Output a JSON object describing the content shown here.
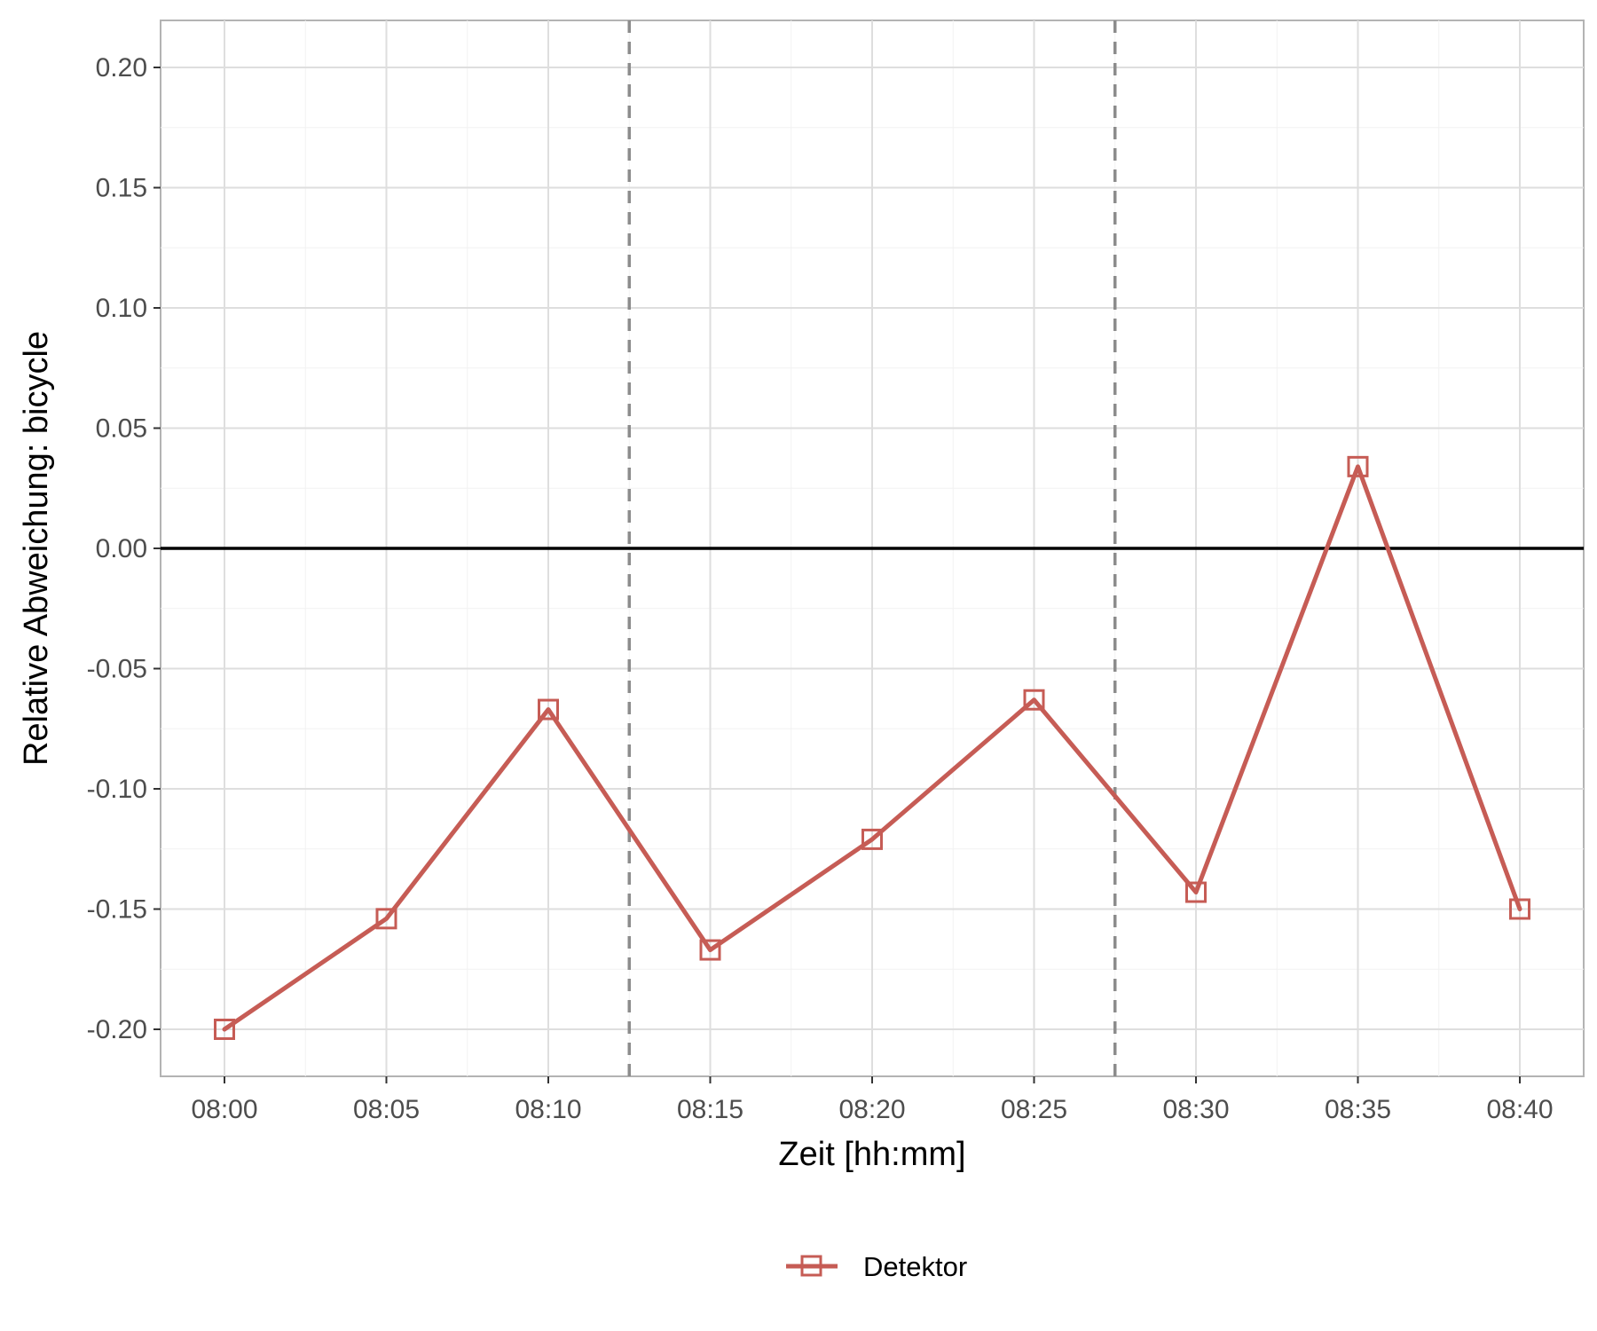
{
  "chart_data": {
    "type": "line",
    "xlabel": "Zeit [hh:mm]",
    "ylabel": "Relative Abweichung: bicycle",
    "x_tick_labels": [
      "08:00",
      "08:05",
      "08:10",
      "08:15",
      "08:20",
      "08:25",
      "08:30",
      "08:35",
      "08:40"
    ],
    "y_tick_labels": [
      "0.20",
      "0.15",
      "0.10",
      "0.05",
      "0.00",
      "-0.05",
      "-0.10",
      "-0.15",
      "-0.20"
    ],
    "y_ticks": [
      0.2,
      0.15,
      0.1,
      0.05,
      0.0,
      -0.05,
      -0.1,
      -0.15,
      -0.2
    ],
    "ylim": [
      -0.22,
      0.22
    ],
    "reference_line_y": 0.0,
    "vertical_dashed_lines_x": [
      "08:12:30",
      "08:27:30"
    ],
    "series": [
      {
        "name": "Detektor",
        "color": "#c65c55",
        "marker": "open-square",
        "x": [
          "08:00",
          "08:05",
          "08:10",
          "08:15",
          "08:20",
          "08:25",
          "08:30",
          "08:35",
          "08:40"
        ],
        "values": [
          -0.2,
          -0.154,
          -0.067,
          -0.167,
          -0.121,
          -0.063,
          -0.143,
          0.034,
          -0.15
        ]
      }
    ],
    "legend": {
      "position": "bottom",
      "entries": [
        "Detektor"
      ]
    },
    "grid": true
  }
}
